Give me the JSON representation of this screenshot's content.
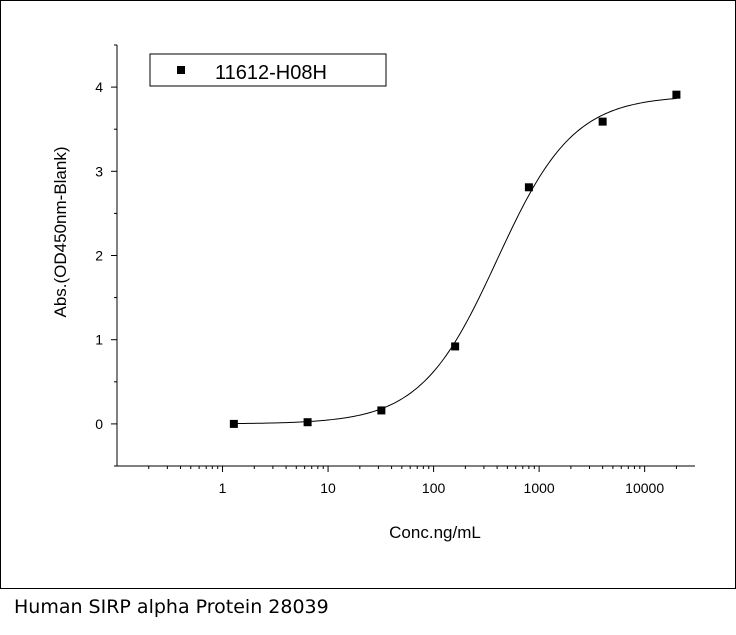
{
  "caption": "Human SIRP alpha Protein 28039",
  "chart_data": {
    "type": "scatter",
    "title": "",
    "xlabel": "Conc.ng/mL",
    "ylabel": "Abs.(OD450nm-Blank)",
    "xscale": "log",
    "xlim": [
      0.1,
      30000
    ],
    "ylim": [
      -0.5,
      4.5
    ],
    "xticks": [
      1,
      10,
      100,
      1000,
      10000
    ],
    "xtick_labels": [
      "1",
      "10",
      "100",
      "1000",
      "10000"
    ],
    "yticks": [
      0,
      1,
      2,
      3,
      4
    ],
    "ytick_labels": [
      "0",
      "1",
      "2",
      "3",
      "4"
    ],
    "legend_position": "top-left",
    "grid": false,
    "series": [
      {
        "name": "11612-H08H",
        "marker": "square",
        "color": "#000000",
        "x": [
          1.28,
          6.4,
          32,
          160,
          800,
          4000,
          20000
        ],
        "y": [
          0.0,
          0.02,
          0.16,
          0.92,
          2.81,
          3.59,
          3.91
        ]
      }
    ],
    "fit_curve": {
      "model": "4PL",
      "bottom": 0.0,
      "top": 3.9,
      "ec50": 400,
      "hill": 1.2,
      "color": "#000000"
    }
  }
}
